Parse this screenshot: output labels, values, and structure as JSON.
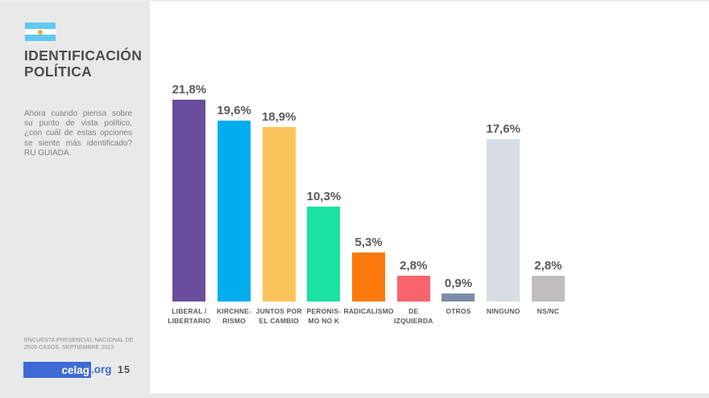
{
  "sidebar": {
    "title_lines": [
      "IDENTIFICACIÓN",
      "POLÍTICA"
    ],
    "description": "Ahora cuando piensa sobre su punto de vista político, ¿con cuál de estas opciones se siente más identificado? RU GUIADA.",
    "survey_note_lines": [
      "ENCUESTA PRESENCIAL NACIONAL DE",
      "2509 CASOS. SEPTIEMBRE 2023"
    ],
    "logo": {
      "box_text": "celag",
      "suffix_text": ".org"
    },
    "page_number": "15"
  },
  "chart_data": {
    "type": "bar",
    "title": "IDENTIFICACIÓN POLÍTICA",
    "xlabel": "",
    "ylabel": "",
    "ylim": [
      0,
      23
    ],
    "grid": false,
    "legend": false,
    "value_suffix": "%",
    "decimal_separator": ",",
    "categories": [
      "LIBERAL / LIBERTARIO",
      "KIRCHNERISMO",
      "JUNTOS POR EL CAMBIO",
      "PERONISMO NO K",
      "RADICALISMO",
      "DE IZQUIERDA",
      "OTROS",
      "NINGUNO",
      "NS/NC"
    ],
    "category_label_lines": [
      [
        "LIBERAL /",
        "LIBERTARIO"
      ],
      [
        "KIRCHNE-",
        "RISMO"
      ],
      [
        "JUNTOS POR",
        "EL CAMBIO"
      ],
      [
        "PERONIS-",
        "MO NO K"
      ],
      [
        "RADICALISMO"
      ],
      [
        "DE",
        "IZQUIERDA"
      ],
      [
        "OTROS"
      ],
      [
        "NINGUNO"
      ],
      [
        "NS/NC"
      ]
    ],
    "values": [
      21.8,
      19.6,
      18.9,
      10.3,
      5.3,
      2.8,
      0.9,
      17.6,
      2.8
    ],
    "value_labels": [
      "21,8%",
      "19,6%",
      "18,9%",
      "10,3%",
      "5,3%",
      "2,8%",
      "0,9%",
      "17,6%",
      "2,8%"
    ],
    "bar_colors": [
      "#6A4D9E",
      "#00ADEF",
      "#FBC45A",
      "#19E2A2",
      "#FC7A0D",
      "#F9636B",
      "#7D8DA8",
      "#D8DCE5",
      "#BFBEBC"
    ]
  },
  "colors": {
    "sidebar_bg": "#E9E9E9",
    "page_bg": "#FFFFFF",
    "title_text": "#4D4D4D",
    "body_text": "#7F7F7F",
    "value_label_text": "#595959",
    "category_label_text": "#595959",
    "note_text": "#8C8C8C",
    "logo_blue": "#3E6AD5",
    "flag_blue": "#5FC9F0",
    "flag_sun": "#F0A830",
    "page_number_text": "#4D4D4D"
  }
}
